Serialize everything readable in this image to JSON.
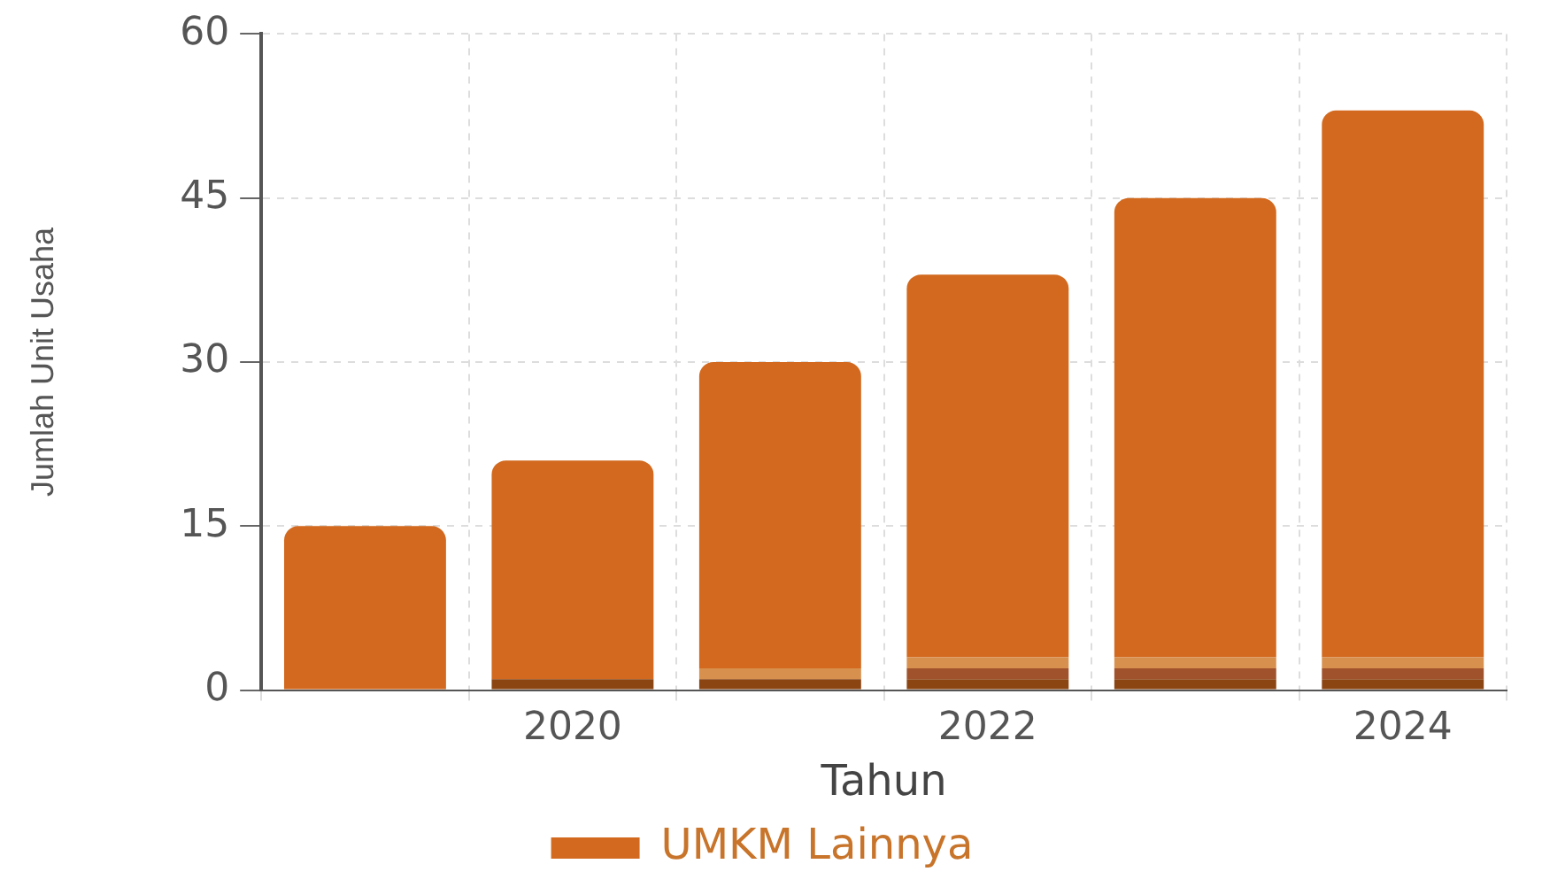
{
  "chart_data": {
    "type": "bar",
    "stacked": true,
    "xlabel": "Tahun",
    "ylabel": "Jumlah Unit Usaha",
    "categories": [
      null,
      "2020",
      null,
      "2022",
      null,
      "2024"
    ],
    "series": [
      {
        "color": "#8b4513",
        "values": [
          0,
          1,
          1,
          1,
          1,
          1
        ]
      },
      {
        "color": "#a0522d",
        "values": [
          0,
          0,
          0,
          1,
          1,
          1
        ]
      },
      {
        "color": "#d8904e",
        "values": [
          0,
          0,
          1,
          1,
          1,
          1
        ]
      },
      {
        "name": "UMKM Lainnya",
        "color": "#d2691e",
        "values": [
          15,
          20,
          28,
          35,
          42,
          50
        ]
      }
    ],
    "ylim": [
      0,
      60
    ],
    "yticks": [
      0,
      15,
      30,
      45,
      60
    ],
    "grid": true,
    "legend": "bottom"
  }
}
